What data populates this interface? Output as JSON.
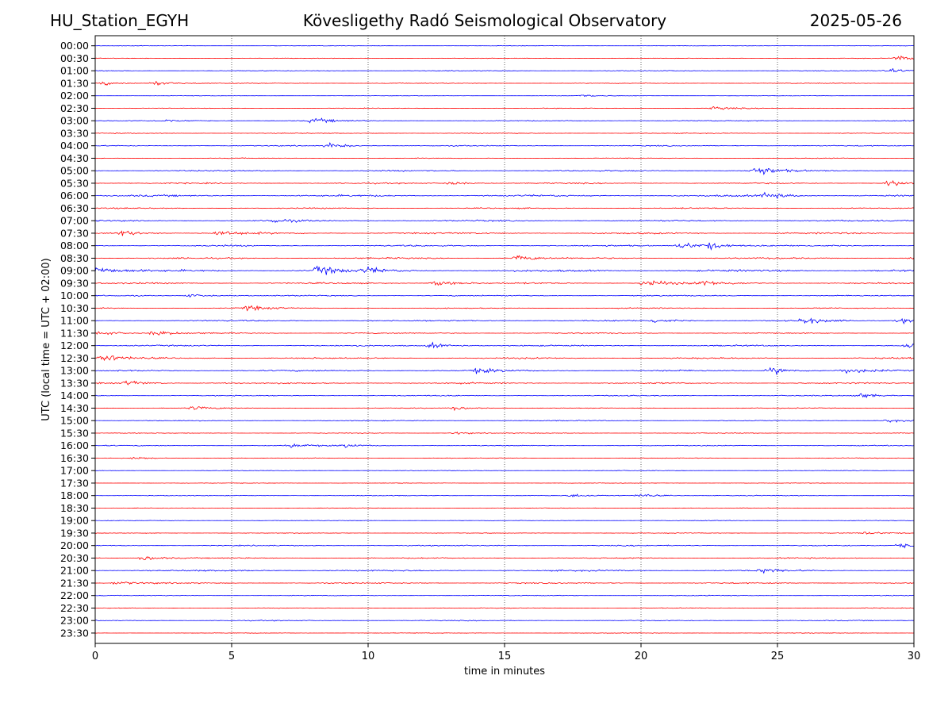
{
  "header": {
    "station": "HU_Station_EGYH",
    "observatory": "Kövesligethy Radó Seismological Observatory",
    "date": "2025-05-26"
  },
  "chart_data": {
    "type": "line",
    "title": "Kövesligethy Radó Seismological Observatory",
    "xlabel": "time in minutes",
    "ylabel": "UTC (local time = UTC + 02:00)",
    "xlim": [
      0,
      30
    ],
    "x_ticks": [
      0,
      5,
      10,
      15,
      20,
      25,
      30
    ],
    "grid": "vertical dotted",
    "colors": {
      "even_rows": "#0000ff",
      "odd_rows": "#ff0000"
    },
    "rows": [
      {
        "label": "00:00",
        "noise": 0.3,
        "events": []
      },
      {
        "label": "00:30",
        "noise": 0.4,
        "events": [
          [
            29.4,
            1.2
          ]
        ]
      },
      {
        "label": "01:00",
        "noise": 0.5,
        "events": [
          [
            29.0,
            1.3
          ]
        ]
      },
      {
        "label": "01:30",
        "noise": 0.5,
        "events": [
          [
            0.3,
            1.0
          ],
          [
            2.2,
            1.4
          ]
        ]
      },
      {
        "label": "02:00",
        "noise": 0.3,
        "events": [
          [
            17.8,
            0.8
          ]
        ]
      },
      {
        "label": "02:30",
        "noise": 0.4,
        "events": [
          [
            22.7,
            1.0
          ]
        ]
      },
      {
        "label": "03:00",
        "noise": 0.6,
        "events": [
          [
            8.0,
            1.5
          ],
          [
            2.5,
            0.8
          ]
        ]
      },
      {
        "label": "03:30",
        "noise": 0.5,
        "events": []
      },
      {
        "label": "04:00",
        "noise": 0.7,
        "events": [
          [
            8.6,
            1.4
          ]
        ]
      },
      {
        "label": "04:30",
        "noise": 0.5,
        "events": []
      },
      {
        "label": "05:00",
        "noise": 0.9,
        "events": [
          [
            24.2,
            3.0
          ]
        ]
      },
      {
        "label": "05:30",
        "noise": 0.8,
        "events": [
          [
            13.0,
            1.0
          ],
          [
            29.1,
            1.6
          ]
        ]
      },
      {
        "label": "06:00",
        "noise": 1.2,
        "events": [
          [
            24.6,
            1.8
          ]
        ]
      },
      {
        "label": "06:30",
        "noise": 0.8,
        "events": []
      },
      {
        "label": "07:00",
        "noise": 1.0,
        "events": [
          [
            6.5,
            1.2
          ]
        ]
      },
      {
        "label": "07:30",
        "noise": 1.1,
        "events": [
          [
            1.0,
            1.8
          ],
          [
            4.5,
            1.4
          ]
        ]
      },
      {
        "label": "08:00",
        "noise": 1.0,
        "events": [
          [
            21.5,
            2.2
          ],
          [
            22.5,
            1.8
          ]
        ]
      },
      {
        "label": "08:30",
        "noise": 1.0,
        "events": [
          [
            15.5,
            1.6
          ],
          [
            30.0,
            1.6
          ]
        ]
      },
      {
        "label": "09:00",
        "noise": 1.4,
        "events": [
          [
            0.1,
            2.2
          ],
          [
            8.2,
            2.6
          ],
          [
            10.0,
            1.6
          ]
        ]
      },
      {
        "label": "09:30",
        "noise": 1.0,
        "events": [
          [
            12.5,
            1.5
          ],
          [
            20.2,
            2.4
          ],
          [
            22.3,
            1.4
          ]
        ]
      },
      {
        "label": "10:00",
        "noise": 0.8,
        "events": [
          [
            3.5,
            1.0
          ]
        ]
      },
      {
        "label": "10:30",
        "noise": 0.7,
        "events": [
          [
            5.6,
            1.4
          ]
        ]
      },
      {
        "label": "11:00",
        "noise": 0.9,
        "events": [
          [
            20.5,
            1.2
          ],
          [
            26.0,
            1.8
          ],
          [
            29.5,
            1.4
          ]
        ]
      },
      {
        "label": "11:30",
        "noise": 0.8,
        "events": [
          [
            0.2,
            1.4
          ],
          [
            2.2,
            1.4
          ]
        ]
      },
      {
        "label": "12:00",
        "noise": 0.9,
        "events": [
          [
            12.3,
            1.5
          ],
          [
            29.8,
            1.6
          ]
        ]
      },
      {
        "label": "12:30",
        "noise": 1.0,
        "events": [
          [
            0.3,
            2.2
          ]
        ]
      },
      {
        "label": "13:00",
        "noise": 1.0,
        "events": [
          [
            14.0,
            1.4
          ],
          [
            24.8,
            2.2
          ],
          [
            27.5,
            1.5
          ]
        ]
      },
      {
        "label": "13:30",
        "noise": 1.0,
        "events": [
          [
            1.2,
            1.5
          ]
        ]
      },
      {
        "label": "14:00",
        "noise": 0.7,
        "events": [
          [
            28.0,
            1.5
          ]
        ]
      },
      {
        "label": "14:30",
        "noise": 0.6,
        "events": [
          [
            3.6,
            1.0
          ],
          [
            13.2,
            1.0
          ]
        ]
      },
      {
        "label": "15:00",
        "noise": 0.6,
        "events": [
          [
            29.0,
            1.0
          ]
        ]
      },
      {
        "label": "15:30",
        "noise": 0.5,
        "events": [
          [
            13.2,
            0.8
          ]
        ]
      },
      {
        "label": "16:00",
        "noise": 0.6,
        "events": [
          [
            7.2,
            1.2
          ],
          [
            9.2,
            1.0
          ]
        ]
      },
      {
        "label": "16:30",
        "noise": 0.5,
        "events": [
          [
            1.5,
            0.8
          ]
        ]
      },
      {
        "label": "17:00",
        "noise": 0.4,
        "events": []
      },
      {
        "label": "17:30",
        "noise": 0.4,
        "events": []
      },
      {
        "label": "18:00",
        "noise": 0.5,
        "events": [
          [
            20.0,
            1.2
          ],
          [
            17.5,
            0.8
          ]
        ]
      },
      {
        "label": "18:30",
        "noise": 0.4,
        "events": []
      },
      {
        "label": "19:00",
        "noise": 0.4,
        "events": []
      },
      {
        "label": "19:30",
        "noise": 0.5,
        "events": [
          [
            28.3,
            0.8
          ]
        ]
      },
      {
        "label": "20:00",
        "noise": 0.7,
        "events": [
          [
            29.5,
            1.6
          ]
        ]
      },
      {
        "label": "20:30",
        "noise": 0.8,
        "events": [
          [
            1.8,
            1.4
          ]
        ]
      },
      {
        "label": "21:00",
        "noise": 1.0,
        "events": [
          [
            24.5,
            1.2
          ]
        ]
      },
      {
        "label": "21:30",
        "noise": 0.8,
        "events": [
          [
            0.8,
            1.0
          ]
        ]
      },
      {
        "label": "22:00",
        "noise": 0.5,
        "events": []
      },
      {
        "label": "22:30",
        "noise": 0.5,
        "events": []
      },
      {
        "label": "23:00",
        "noise": 0.6,
        "events": []
      },
      {
        "label": "23:30",
        "noise": 0.4,
        "events": []
      }
    ]
  }
}
